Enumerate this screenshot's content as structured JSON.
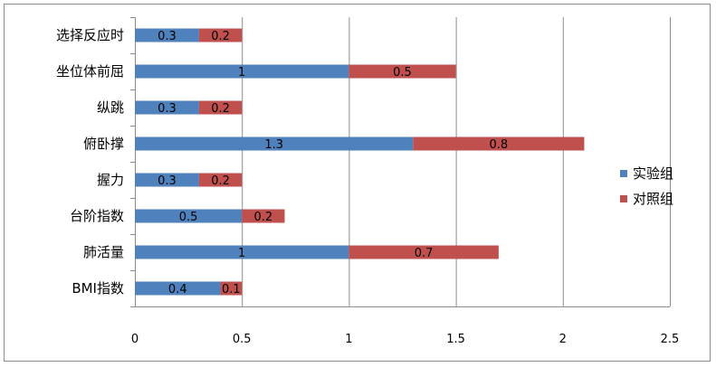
{
  "chart_data": {
    "type": "bar",
    "orientation": "horizontal",
    "stacked": true,
    "categories": [
      "选择反应时",
      "坐位体前屈",
      "纵跳",
      "俯卧撑",
      "握力",
      "台阶指数",
      "肺活量",
      "BMI指数"
    ],
    "series": [
      {
        "name": "实验组",
        "color": "#4f81bd",
        "values": [
          0.3,
          1,
          0.3,
          1.3,
          0.3,
          0.5,
          1,
          0.4
        ]
      },
      {
        "name": "对照组",
        "color": "#c0504d",
        "values": [
          0.2,
          0.5,
          0.2,
          0.8,
          0.2,
          0.2,
          0.7,
          0.1
        ]
      }
    ],
    "xticks": [
      "0",
      "0.5",
      "1",
      "1.5",
      "2",
      "2.5"
    ],
    "xlim": [
      0,
      2.5
    ],
    "grid": "vertical",
    "legend": "right",
    "title": "",
    "xlabel": "",
    "ylabel": ""
  }
}
